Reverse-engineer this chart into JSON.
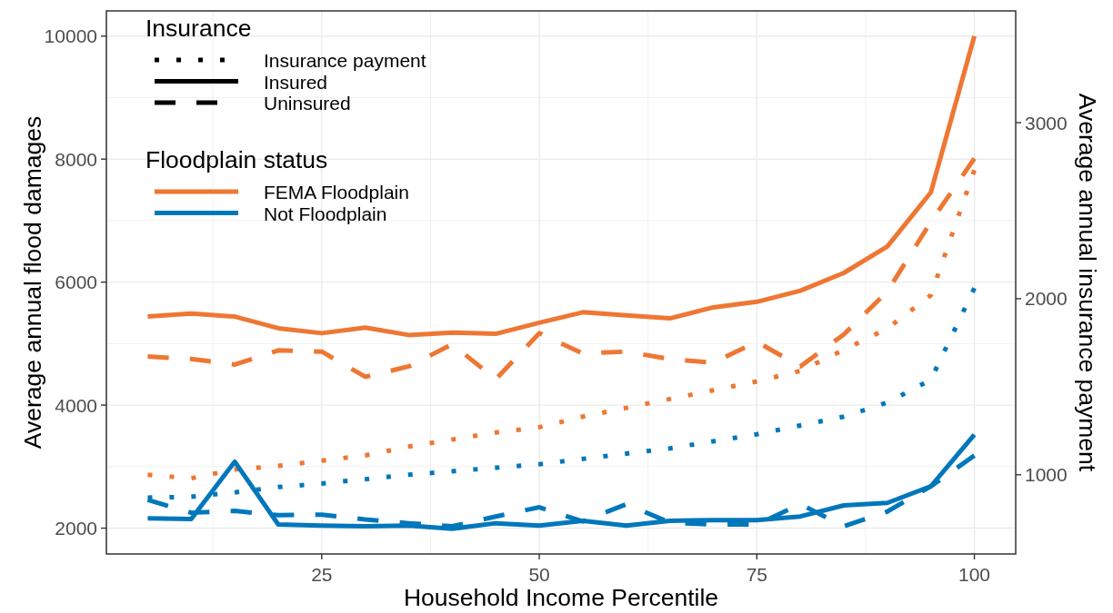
{
  "chart_data": {
    "type": "line",
    "xlabel": "Household Income Percentile",
    "ylabel": "Average annual flood damages",
    "y2label": "Average annual insurance payment",
    "annotations": [
      "Insurance",
      "Insurance payment",
      "Insured",
      "Uninsured"
    ],
    "legend_title": "Floodplain status",
    "x": [
      5,
      10,
      15,
      20,
      25,
      30,
      35,
      40,
      45,
      50,
      55,
      60,
      65,
      70,
      75,
      80,
      85,
      90,
      95,
      100
    ],
    "xlim": [
      0.25,
      104.75
    ],
    "xticks": [
      {
        "value": 12.5,
        "label": null
      },
      25,
      {
        "value": 37.5,
        "label": null
      },
      50,
      {
        "value": 62.5,
        "label": null
      },
      75,
      {
        "value": 87.5,
        "label": null
      },
      100
    ],
    "ylim": [
      1580,
      10410
    ],
    "yticks": [
      2000,
      {
        "value": 3000,
        "label": null
      },
      4000,
      {
        "value": 5000,
        "label": null
      },
      6000,
      {
        "value": 7000,
        "label": null
      },
      8000,
      {
        "value": 9000,
        "label": null
      },
      10000
    ],
    "y2lim": [
      550,
      3635
    ],
    "y2ticks": [
      1000,
      2000,
      3000
    ],
    "grid": true,
    "legend": "top left",
    "series": [
      {
        "color": "#ee7733",
        "line_style": "dotted",
        "axis": "y2",
        "values": [
          1000,
          980,
          1030,
          1050,
          1080,
          1110,
          1160,
          1200,
          1240,
          1270,
          1330,
          1380,
          1430,
          1480,
          1530,
          1590,
          1710,
          1830,
          2020,
          2730
        ]
      },
      {
        "name": "FEMA Floodplain",
        "color": "#ee7733",
        "line_style": "solid",
        "values": [
          5440,
          5490,
          5440,
          5250,
          5170,
          5260,
          5140,
          5180,
          5160,
          5340,
          5510,
          5460,
          5410,
          5590,
          5680,
          5860,
          6150,
          6580,
          7460,
          10000
        ]
      },
      {
        "color": "#ee7733",
        "line_style": "dashed",
        "values": [
          4790,
          4750,
          4660,
          4890,
          4870,
          4460,
          4630,
          4990,
          4420,
          5170,
          4840,
          4870,
          4750,
          4690,
          5030,
          4630,
          5150,
          5850,
          6980,
          8010
        ]
      },
      {
        "color": "#0077bb",
        "line_style": "dotted",
        "axis": "y2",
        "values": [
          870,
          875,
          900,
          930,
          950,
          975,
          1000,
          1020,
          1040,
          1060,
          1090,
          1120,
          1150,
          1190,
          1230,
          1280,
          1330,
          1410,
          1540,
          2060
        ]
      },
      {
        "color": "#0077bb",
        "line_style": "dashed",
        "values": [
          2460,
          2250,
          2280,
          2210,
          2220,
          2140,
          2080,
          2030,
          2190,
          2340,
          2110,
          2390,
          2090,
          2060,
          2060,
          2390,
          2030,
          2270,
          2680,
          3180
        ]
      },
      {
        "name": "Not Floodplain",
        "color": "#0077bb",
        "line_style": "solid",
        "values": [
          2160,
          2150,
          3080,
          2060,
          2040,
          2030,
          2040,
          1990,
          2080,
          2040,
          2120,
          2040,
          2120,
          2130,
          2130,
          2190,
          2370,
          2410,
          2680,
          3520
        ]
      }
    ]
  }
}
